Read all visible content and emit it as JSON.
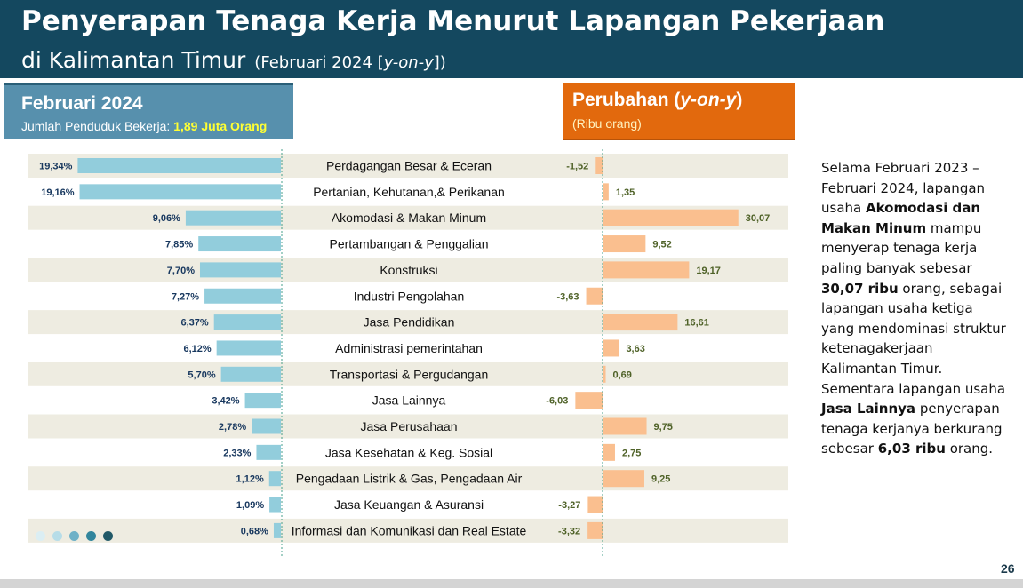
{
  "header": {
    "title_line1": "Penyerapan Tenaga Kerja Menurut Lapangan Pekerjaan",
    "title_line2": "di Kalimantan Timur",
    "period_prefix": "(Februari 2024 [",
    "period_italic": "y-on-y",
    "period_suffix": "])"
  },
  "left_box": {
    "heading": "Februari 2024",
    "sub_label": "Jumlah Penduduk Bekerja: ",
    "sub_value": "1,89 Juta Orang"
  },
  "right_box": {
    "heading_prefix": "Perubahan (",
    "heading_italic": "y-on-y",
    "heading_suffix": ")",
    "unit": "(Ribu orang)"
  },
  "narrative": {
    "p1": "Selama Februari 2023 – Februari 2024, lapangan usaha ",
    "b1": "Akomodasi dan Makan Minum",
    "p2": " mampu menyerap tenaga kerja paling banyak sebesar ",
    "b2": "30,07 ribu",
    "p3": " orang, sebagai lapangan usaha ketiga yang mendominasi struktur ketenagakerjaan Kalimantan Timur. Sementara lapangan usaha ",
    "b3": "Jasa Lainnya",
    "p4": " penyerapan tenaga kerjanya berkurang sebesar ",
    "b4": "6,03 ribu",
    "p5": " orang."
  },
  "page_number": "26",
  "colors": {
    "header_bg": "#14485f",
    "left_bar": "#92cddc",
    "right_bar": "#fabf8f",
    "row_band": "#eeece1",
    "left_box_bg": "#5790ad",
    "right_box_bg": "#e2690d",
    "left_value_text": "#17375e",
    "right_value_text": "#4f6228"
  },
  "decor_dots": [
    "#dbeef3",
    "#b7dde8",
    "#6fb1c7",
    "#31859c",
    "#215968"
  ],
  "chart_data": [
    {
      "type": "bar",
      "orientation": "horizontal",
      "categories": [
        "Perdagangan Besar & Eceran",
        "Pertanian, Kehutanan,& Perikanan",
        "Akomodasi & Makan Minum",
        "Pertambangan & Penggalian",
        "Konstruksi",
        "Industri Pengolahan",
        "Jasa Pendidikan",
        "Administrasi pemerintahan",
        "Transportasi & Pergudangan",
        "Jasa Lainnya",
        "Jasa Perusahaan",
        "Jasa Kesehatan & Keg. Sosial",
        "Pengadaan Listrik & Gas, Pengadaan Air",
        "Jasa Keuangan & Asuransi",
        "Informasi dan Komunikasi dan Real Estate"
      ],
      "values": [
        19.34,
        19.16,
        9.06,
        7.85,
        7.7,
        7.27,
        6.37,
        6.12,
        5.7,
        3.42,
        2.78,
        2.33,
        1.12,
        1.09,
        0.68
      ],
      "value_labels": [
        "19,34%",
        "19,16%",
        "9,06%",
        "7,85%",
        "7,70%",
        "7,27%",
        "6,37%",
        "6,12%",
        "5,70%",
        "3,42%",
        "2,78%",
        "2,33%",
        "1,12%",
        "1,09%",
        "0,68%"
      ],
      "title": "Februari 2024"
    },
    {
      "type": "bar",
      "orientation": "horizontal",
      "categories": [
        "Perdagangan Besar & Eceran",
        "Pertanian, Kehutanan,& Perikanan",
        "Akomodasi & Makan Minum",
        "Pertambangan & Penggalian",
        "Konstruksi",
        "Industri Pengolahan",
        "Jasa Pendidikan",
        "Administrasi pemerintahan",
        "Transportasi & Pergudangan",
        "Jasa Lainnya",
        "Jasa Perusahaan",
        "Jasa Kesehatan & Keg. Sosial",
        "Pengadaan Listrik & Gas, Pengadaan Air",
        "Jasa Keuangan & Asuransi",
        "Informasi dan Komunikasi dan Real Estate"
      ],
      "values": [
        -1.52,
        1.35,
        30.07,
        9.52,
        19.17,
        -3.63,
        16.61,
        3.63,
        0.69,
        -6.03,
        9.75,
        2.75,
        9.25,
        -3.27,
        -3.32
      ],
      "value_labels": [
        "-1,52",
        "1,35",
        "30,07",
        "9,52",
        "19,17",
        "-3,63",
        "16,61",
        "3,63",
        "0,69",
        "-6,03",
        "9,75",
        "2,75",
        "9,25",
        "-3,27",
        "-3,32"
      ],
      "title": "Perubahan (y-on-y)",
      "unit": "(Ribu orang)"
    }
  ]
}
